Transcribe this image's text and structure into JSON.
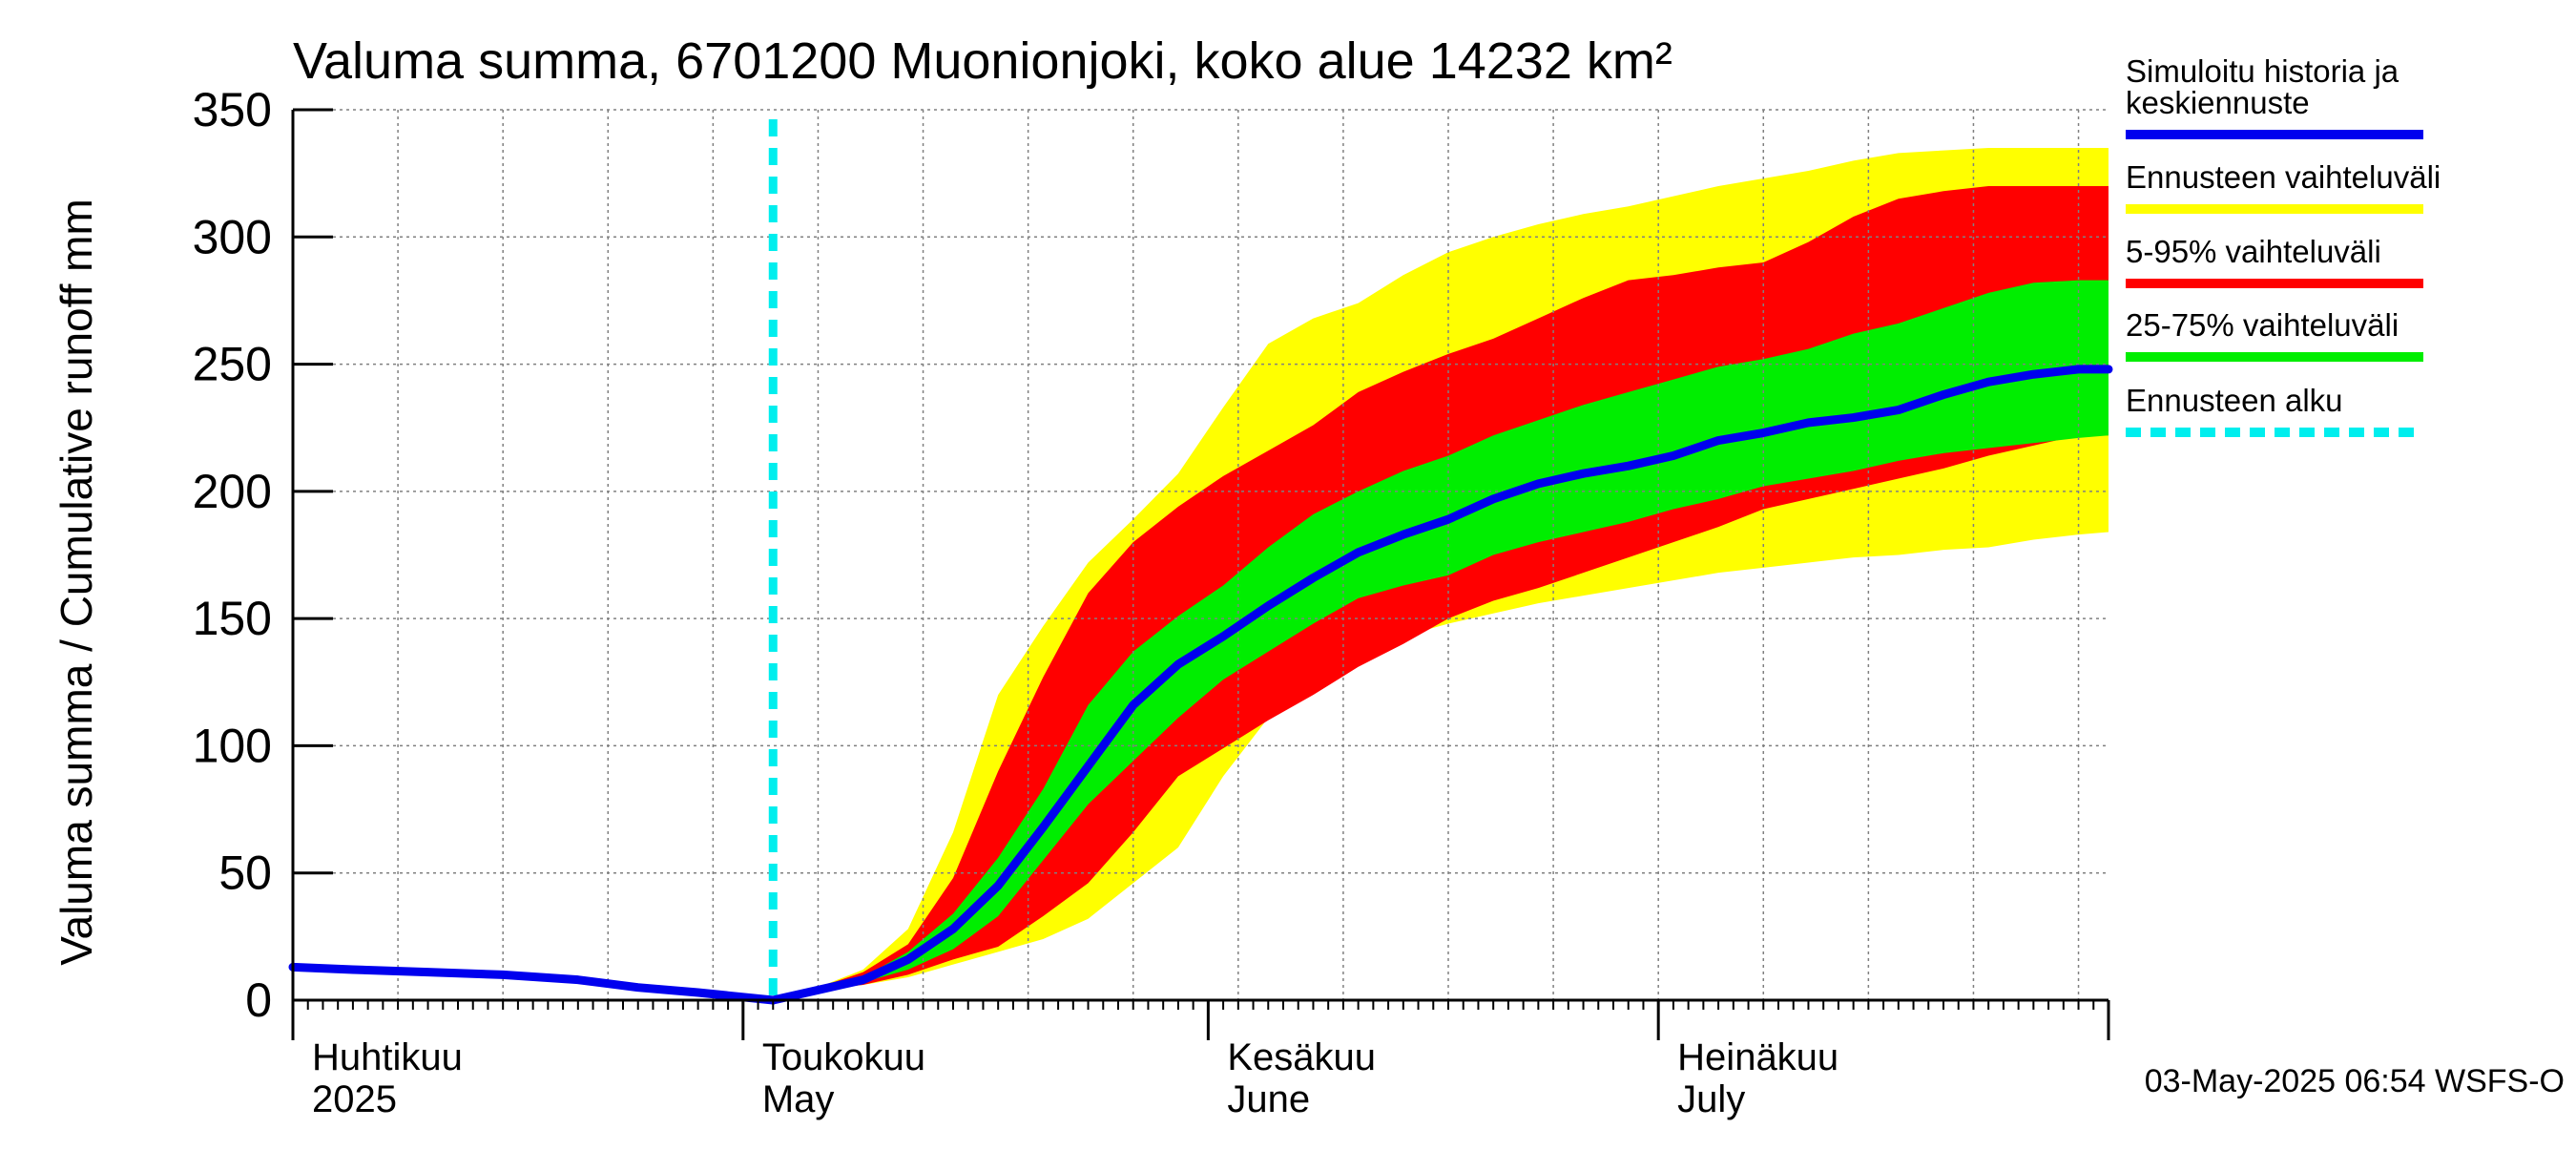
{
  "chart_data": {
    "type": "area",
    "title": "Valuma summa, 6701200 Muonionjoki, koko alue 14232 km²",
    "ylabel": "Valuma summa / Cumulative runoff    mm",
    "ylim": [
      0,
      350
    ],
    "yticks": [
      0,
      50,
      100,
      150,
      200,
      250,
      300,
      350
    ],
    "xlim": [
      "2025-04-01",
      "2025-07-31"
    ],
    "grid": true,
    "x_axis_labels": [
      {
        "date": "2025-04-01",
        "line1": "Huhtikuu",
        "line2": "2025"
      },
      {
        "date": "2025-05-01",
        "line1": "Toukokuu",
        "line2": "May"
      },
      {
        "date": "2025-06-01",
        "line1": "Kesäkuu",
        "line2": "June"
      },
      {
        "date": "2025-07-01",
        "line1": "Heinäkuu",
        "line2": "July"
      }
    ],
    "forecast_start": "2025-05-03",
    "timestamp": "03-May-2025 06:54 WSFS-O",
    "legend": {
      "placement": "right",
      "entries": [
        {
          "label": "Simuloitu historia ja keskiennuste",
          "color": "#0000ee",
          "style": "solid"
        },
        {
          "label": "Ennusteen vaihteluväli",
          "color": "#ffff00",
          "style": "solid"
        },
        {
          "label": "5-95% vaihteluväli",
          "color": "#ff0000",
          "style": "solid"
        },
        {
          "label": "25-75% vaihteluväli",
          "color": "#00ee00",
          "style": "solid"
        },
        {
          "label": "Ennusteen alku",
          "color": "#00eeee",
          "style": "dashed"
        }
      ]
    },
    "colors": {
      "median": "#0000ee",
      "minmax": "#ffff00",
      "p5_95": "#ff0000",
      "p25_75": "#00ee00",
      "forecast_start": "#00eeee",
      "grid": "#808080"
    },
    "history": {
      "x": [
        "2025-04-01",
        "2025-04-05",
        "2025-04-10",
        "2025-04-15",
        "2025-04-20",
        "2025-04-24",
        "2025-04-28",
        "2025-05-03"
      ],
      "y": [
        13,
        12,
        11,
        10,
        8,
        5,
        3,
        0
      ]
    },
    "forecast": {
      "x": [
        "2025-05-03",
        "2025-05-06",
        "2025-05-09",
        "2025-05-12",
        "2025-05-15",
        "2025-05-18",
        "2025-05-21",
        "2025-05-24",
        "2025-05-27",
        "2025-05-30",
        "2025-06-02",
        "2025-06-05",
        "2025-06-08",
        "2025-06-11",
        "2025-06-14",
        "2025-06-17",
        "2025-06-20",
        "2025-06-23",
        "2025-06-26",
        "2025-06-29",
        "2025-07-02",
        "2025-07-05",
        "2025-07-08",
        "2025-07-11",
        "2025-07-14",
        "2025-07-17",
        "2025-07-20",
        "2025-07-23",
        "2025-07-26",
        "2025-07-29",
        "2025-07-31"
      ],
      "median": [
        0,
        4,
        8,
        16,
        28,
        45,
        68,
        92,
        116,
        132,
        143,
        155,
        166,
        176,
        183,
        189,
        197,
        203,
        207,
        210,
        214,
        220,
        223,
        227,
        229,
        232,
        238,
        243,
        246,
        248,
        248
      ],
      "p25": [
        0,
        4,
        7,
        12,
        20,
        33,
        55,
        77,
        94,
        111,
        126,
        137,
        148,
        158,
        163,
        167,
        175,
        180,
        184,
        188,
        193,
        197,
        202,
        205,
        208,
        212,
        215,
        217,
        219,
        221,
        222
      ],
      "p75": [
        0,
        5,
        9,
        19,
        34,
        56,
        83,
        116,
        137,
        151,
        163,
        178,
        191,
        200,
        208,
        214,
        222,
        228,
        234,
        239,
        244,
        249,
        252,
        256,
        262,
        266,
        272,
        278,
        282,
        283,
        283
      ],
      "p5": [
        0,
        4,
        6,
        10,
        16,
        21,
        33,
        46,
        66,
        88,
        99,
        110,
        120,
        131,
        140,
        150,
        157,
        162,
        168,
        174,
        180,
        186,
        193,
        197,
        201,
        205,
        209,
        214,
        218,
        222,
        222
      ],
      "p95": [
        0,
        5,
        11,
        22,
        48,
        90,
        127,
        160,
        180,
        194,
        206,
        216,
        226,
        239,
        247,
        254,
        260,
        268,
        276,
        283,
        285,
        288,
        290,
        298,
        308,
        315,
        318,
        320,
        320,
        320,
        320
      ],
      "min": [
        0,
        4,
        6,
        9,
        14,
        19,
        24,
        32,
        46,
        60,
        88,
        111,
        124,
        135,
        143,
        148,
        152,
        156,
        159,
        162,
        165,
        168,
        170,
        172,
        174,
        175,
        177,
        178,
        181,
        183,
        184
      ],
      "max": [
        0,
        5,
        12,
        28,
        66,
        120,
        147,
        172,
        189,
        207,
        233,
        258,
        268,
        274,
        285,
        294,
        300,
        305,
        309,
        312,
        316,
        320,
        323,
        326,
        330,
        333,
        334,
        335,
        335,
        335,
        335
      ]
    }
  }
}
